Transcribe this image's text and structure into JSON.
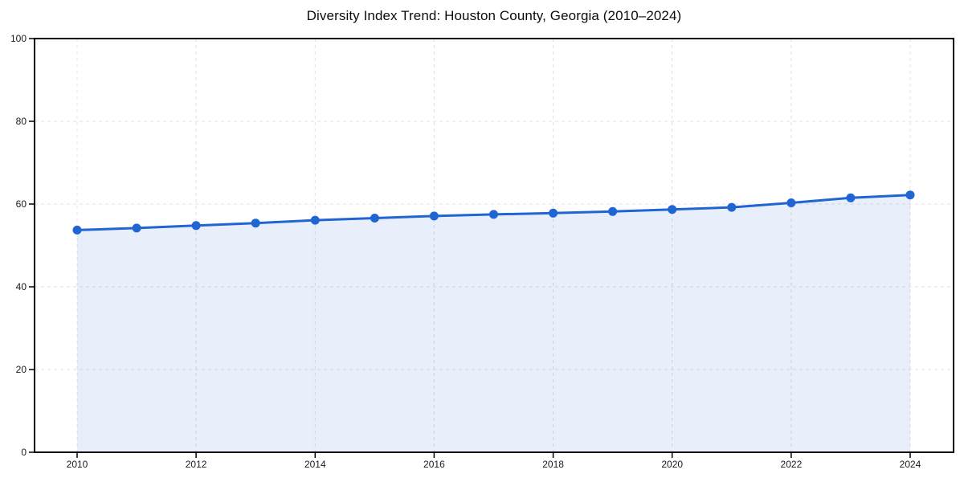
{
  "chart_data": {
    "type": "line",
    "title": "Diversity Index Trend: Houston County, Georgia (2010–2024)",
    "x": [
      2010,
      2011,
      2012,
      2013,
      2014,
      2015,
      2016,
      2017,
      2018,
      2019,
      2020,
      2021,
      2022,
      2023,
      2024
    ],
    "series": [
      {
        "name": "Diversity Index",
        "values": [
          53.7,
          54.2,
          54.8,
          55.4,
          56.1,
          56.6,
          57.1,
          57.5,
          57.8,
          58.2,
          58.7,
          59.2,
          60.3,
          61.5,
          62.2
        ]
      }
    ],
    "xlabel": "",
    "ylabel": "",
    "ylim": [
      0,
      100
    ],
    "yticks": [
      0,
      20,
      40,
      60,
      80,
      100
    ],
    "xticks": [
      2010,
      2012,
      2014,
      2016,
      2018,
      2020,
      2022,
      2024
    ],
    "grid": true,
    "grid_style": "dashed",
    "legend_position": "none",
    "marker": "circle",
    "area_fill": true,
    "colors": {
      "line": "#2065d4",
      "marker": "#2065d4",
      "area": "rgba(32,101,212,0.10)",
      "gridline": "#e0e0e0",
      "axis": "#000000",
      "tick_text": "#1a1a1a",
      "title_text": "#0d0d0d",
      "background": "#ffffff"
    }
  }
}
